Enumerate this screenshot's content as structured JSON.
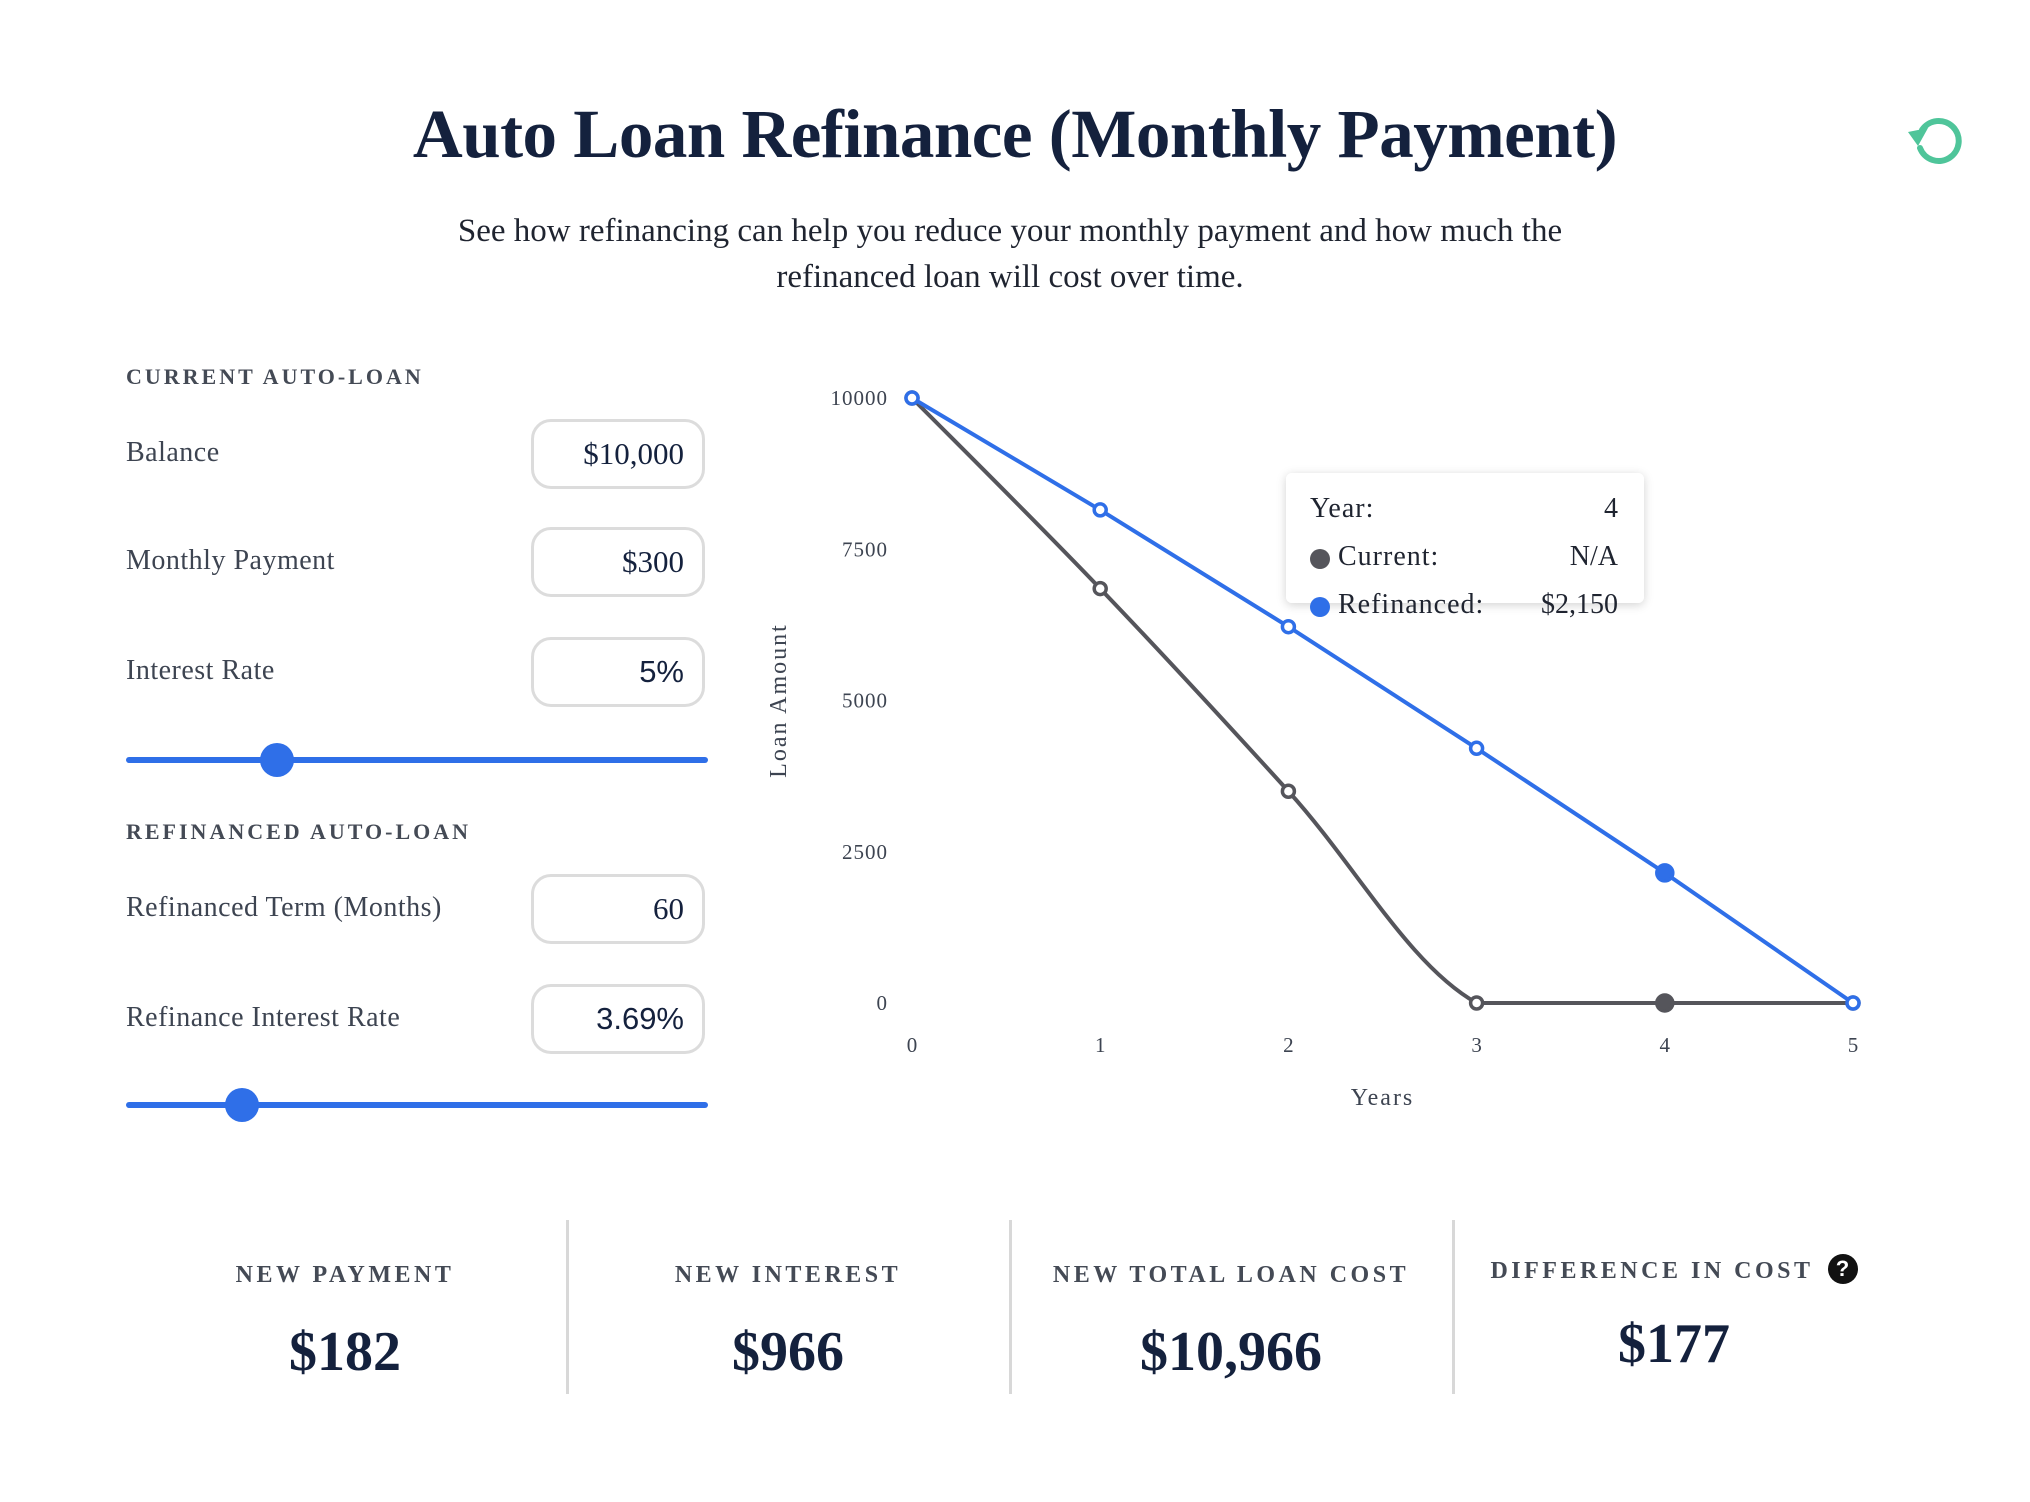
{
  "header": {
    "title": "Auto Loan Refinance (Monthly Payment)",
    "subtitle": "See how refinancing can help you reduce your monthly payment and how much the refinanced loan will cost over time.",
    "reset_icon": "reset-icon",
    "accent_color": "#4fc59a"
  },
  "current_loan": {
    "heading": "CURRENT AUTO-LOAN",
    "balance": {
      "label": "Balance",
      "value": "$10,000"
    },
    "monthly_payment": {
      "label": "Monthly Payment",
      "value": "$300"
    },
    "interest_rate": {
      "label": "Interest Rate",
      "value": "5%",
      "slider_level": 0.26
    }
  },
  "refinanced_loan": {
    "heading": "REFINANCED AUTO-LOAN",
    "term": {
      "label": "Refinanced Term (Months)",
      "value": "60"
    },
    "interest_rate": {
      "label": "Refinance Interest Rate",
      "value": "3.69%",
      "slider_level": 0.2
    }
  },
  "chart_data": {
    "type": "line",
    "x": [
      0,
      1,
      2,
      3,
      4,
      5
    ],
    "xlabel": "Years",
    "ylabel": "Loan Amount",
    "ylim": [
      0,
      10000
    ],
    "yticks": [
      "10000",
      "7500",
      "5000",
      "2500",
      "0"
    ],
    "xticks": [
      "0",
      "1",
      "2",
      "3",
      "4",
      "5"
    ],
    "series": [
      {
        "name": "Current",
        "color": "#55555b",
        "values": [
          10000,
          6850,
          3500,
          0,
          0,
          0
        ]
      },
      {
        "name": "Refinanced",
        "color": "#2f6fe8",
        "values": [
          10000,
          8150,
          6220,
          4210,
          2150,
          0
        ]
      }
    ],
    "highlight_index": 4,
    "grid": false
  },
  "tooltip": {
    "year_label": "Year:",
    "year_value": "4",
    "current_label": "Current:",
    "current_value": "N/A",
    "refinanced_label": "Refinanced:",
    "refinanced_value": "$2,150"
  },
  "stats": [
    {
      "label": "NEW PAYMENT",
      "value": "$182"
    },
    {
      "label": "NEW INTEREST",
      "value": "$966"
    },
    {
      "label": "NEW TOTAL LOAN COST",
      "value": "$10,966"
    },
    {
      "label": "DIFFERENCE IN COST",
      "value": "$177",
      "help_icon": "?"
    }
  ]
}
